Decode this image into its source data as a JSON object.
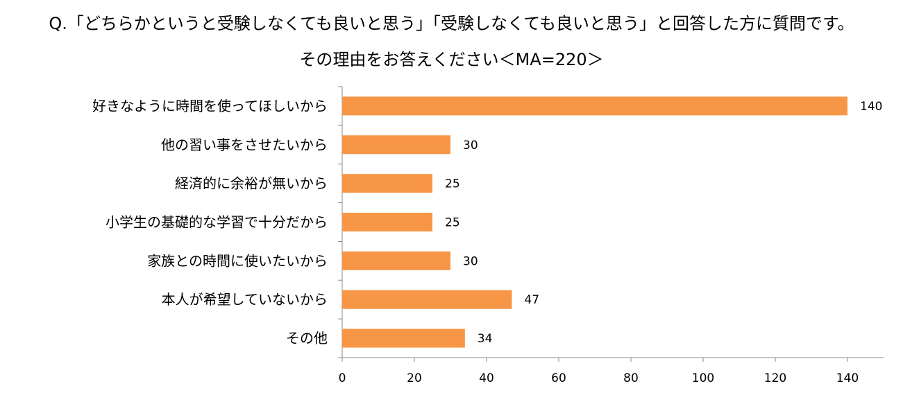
{
  "chart_data": {
    "type": "bar",
    "orientation": "horizontal",
    "title": "Q.「どちらかというと受験しなくても良いと思う」「受験しなくても良いと思う」と回答した方に質問です。",
    "subtitle": "その理由をお答えください＜MA=220＞",
    "categories": [
      "好きなように時間を使ってほしいから",
      "他の習い事をさせたいから",
      "経済的に余裕が無いから",
      "小学生の基礎的な学習で十分だから",
      "家族との時間に使いたいから",
      "本人が希望していないから",
      "その他"
    ],
    "values": [
      140,
      30,
      25,
      25,
      30,
      47,
      34
    ],
    "xlim": [
      0,
      150
    ],
    "xticks": [
      0,
      20,
      40,
      60,
      80,
      100,
      120,
      140
    ],
    "grid": false,
    "legend": "none",
    "bar_color": "#F79646"
  }
}
